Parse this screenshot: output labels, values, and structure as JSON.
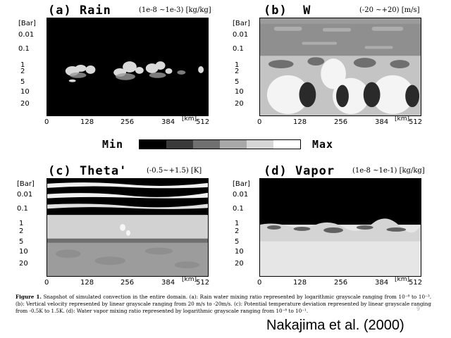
{
  "colorbar": {
    "min_label": "Min",
    "max_label": "Max"
  },
  "panels": [
    {
      "id": "rain",
      "title": "(a) Rain",
      "range": "(1e-8 ~1e-3) [kg/kg]",
      "y_unit": "[Bar]",
      "y_ticks": [
        "0.01",
        "0.1",
        "1",
        "2",
        "5",
        "10",
        "20"
      ],
      "x_ticks": [
        "0",
        "128",
        "256",
        "384",
        "512"
      ],
      "x_unit": "[km]"
    },
    {
      "id": "w",
      "title": "(b)  W",
      "range": "(-20 ~+20) [m/s]",
      "y_unit": "[Bar]",
      "y_ticks": [
        "0.01",
        "0.1",
        "1",
        "2",
        "5",
        "10",
        "20"
      ],
      "x_ticks": [
        "0",
        "128",
        "256",
        "384",
        "512"
      ],
      "x_unit": "[km]"
    },
    {
      "id": "theta",
      "title": "(c) Theta'",
      "range": "(-0.5~+1.5) [K]",
      "y_unit": "[Bar]",
      "y_ticks": [
        "0.01",
        "0.1",
        "1",
        "2",
        "5",
        "10",
        "20"
      ],
      "x_ticks": [
        "0",
        "128",
        "256",
        "384",
        "512"
      ],
      "x_unit": "[km]"
    },
    {
      "id": "vapor",
      "title": "(d) Vapor",
      "range": "(1e-8 ~1e-1) [kg/kg]",
      "y_unit": "[Bar]",
      "y_ticks": [
        "0.01",
        "0.1",
        "1",
        "2",
        "5",
        "10",
        "20"
      ],
      "x_ticks": [
        "0",
        "128",
        "256",
        "384",
        "512"
      ],
      "x_unit": "[km]"
    }
  ],
  "caption": {
    "lead": "Figure 1.",
    "text": "Snapshot of simulated convection in the entire domain. (a): Rain water mixing ratio represented by logarithmic grayscale ranging from 10⁻⁸ to 10⁻³. (b): Vertical velocity represented by linear grayscale ranging from 20 m/s to -20m/s. (c): Potential temperature deviation represented by linear grayscale ranging from -0.5K to 1.5K. (d): Water vapor mixing ratio represented by logarithmic grayscale ranging from 10⁻⁸ to 10⁻¹."
  },
  "citation": "Nakajima et al. (2000)",
  "page_number": "9"
}
